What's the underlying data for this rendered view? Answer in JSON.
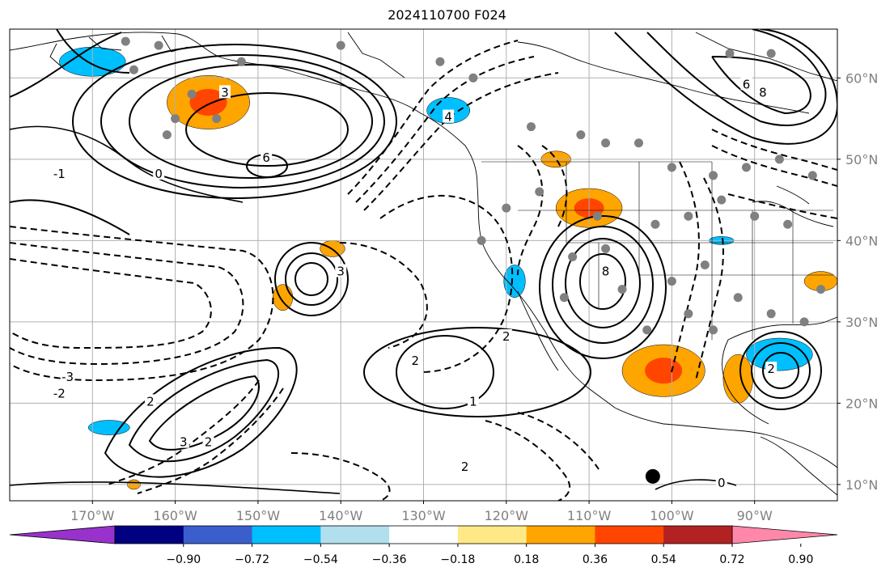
{
  "title": "2024110700 F024",
  "map": {
    "projection": "plate-carree",
    "lon_range": [
      -180,
      -80
    ],
    "lat_range": [
      8,
      66
    ],
    "lon_ticks": [
      {
        "value": -170,
        "label": "170°W"
      },
      {
        "value": -160,
        "label": "160°W"
      },
      {
        "value": -150,
        "label": "150°W"
      },
      {
        "value": -140,
        "label": "140°W"
      },
      {
        "value": -130,
        "label": "130°W"
      },
      {
        "value": -120,
        "label": "120°W"
      },
      {
        "value": -110,
        "label": "110°W"
      },
      {
        "value": -100,
        "label": "100°W"
      },
      {
        "value": -90,
        "label": "90°W"
      }
    ],
    "lat_ticks": [
      {
        "value": 60,
        "label": "60°N"
      },
      {
        "value": 50,
        "label": "50°N"
      },
      {
        "value": 40,
        "label": "40°N"
      },
      {
        "value": 30,
        "label": "30°N"
      },
      {
        "value": 20,
        "label": "20°N"
      },
      {
        "value": 10,
        "label": "10°N"
      }
    ],
    "grid": true
  },
  "colorbar": {
    "extend": "both",
    "colors": [
      "#9932cc",
      "#000080",
      "#3a5fcd",
      "#00bfff",
      "#b2dfee",
      "#ffffff",
      "#ffe987",
      "#ffa500",
      "#ff4500",
      "#b22222",
      "#ff88aa"
    ],
    "tick_labels": [
      "−0.90",
      "−0.72",
      "−0.54",
      "−0.36",
      "−0.18",
      "0.18",
      "0.36",
      "0.54",
      "0.72",
      "0.90"
    ]
  },
  "contour_labels": [
    {
      "text": "6",
      "lon": -149,
      "lat": 50
    },
    {
      "text": "3",
      "lon": -154,
      "lat": 58
    },
    {
      "text": "0",
      "lon": -162,
      "lat": 48
    },
    {
      "text": "-1",
      "lon": -174,
      "lat": 48
    },
    {
      "text": "-2",
      "lon": -174,
      "lat": 21
    },
    {
      "text": "-3",
      "lon": -173,
      "lat": 23
    },
    {
      "text": "3",
      "lon": -159,
      "lat": 15
    },
    {
      "text": "2",
      "lon": -156,
      "lat": 15
    },
    {
      "text": "2",
      "lon": -163,
      "lat": 20
    },
    {
      "text": "2",
      "lon": -131,
      "lat": 25
    },
    {
      "text": "1",
      "lon": -124,
      "lat": 20
    },
    {
      "text": "3",
      "lon": -140,
      "lat": 36
    },
    {
      "text": "8",
      "lon": -108,
      "lat": 36
    },
    {
      "text": "2",
      "lon": -120,
      "lat": 28
    },
    {
      "text": "2",
      "lon": -88,
      "lat": 24
    },
    {
      "text": "6",
      "lon": -91,
      "lat": 59
    },
    {
      "text": "8",
      "lon": -89,
      "lat": 58
    },
    {
      "text": "4",
      "lon": -127,
      "lat": 55
    },
    {
      "text": "2",
      "lon": -125,
      "lat": 12
    },
    {
      "text": "0",
      "lon": -94,
      "lat": 10
    }
  ],
  "positive_anomalies": [
    {
      "lon": -156,
      "lat": 57,
      "rx": 5,
      "ry": 3.3
    },
    {
      "lon": -110,
      "lat": 44,
      "rx": 4,
      "ry": 2.4
    },
    {
      "lon": -101,
      "lat": 24,
      "rx": 5,
      "ry": 3.2
    },
    {
      "lon": -92,
      "lat": 23,
      "rx": 1.8,
      "ry": 3
    },
    {
      "lon": -141,
      "lat": 39,
      "rx": 1.5,
      "ry": 1
    },
    {
      "lon": -114,
      "lat": 50,
      "rx": 1.8,
      "ry": 1
    },
    {
      "lon": -165,
      "lat": 10,
      "rx": 0.8,
      "ry": 0.6
    },
    {
      "lon": -147,
      "lat": 33,
      "rx": 1.2,
      "ry": 1.6
    },
    {
      "lon": -82,
      "lat": 35,
      "rx": 2,
      "ry": 1.2
    }
  ],
  "negative_anomalies": [
    {
      "lon": -170,
      "lat": 62,
      "rx": 4,
      "ry": 1.8
    },
    {
      "lon": -127,
      "lat": 56,
      "rx": 2.6,
      "ry": 1.6
    },
    {
      "lon": -119,
      "lat": 35,
      "rx": 1.3,
      "ry": 2
    },
    {
      "lon": -87,
      "lat": 26,
      "rx": 4,
      "ry": 2
    },
    {
      "lon": -168,
      "lat": 17,
      "rx": 2.5,
      "ry": 0.9
    },
    {
      "lon": -94,
      "lat": 40,
      "rx": 1.5,
      "ry": 0.5
    }
  ],
  "station_dots": [
    [
      -166,
      64.5
    ],
    [
      -162,
      64
    ],
    [
      -165,
      61
    ],
    [
      -152,
      62
    ],
    [
      -158,
      58
    ],
    [
      -155,
      55
    ],
    [
      -161,
      53
    ],
    [
      -160,
      55
    ],
    [
      -140,
      64
    ],
    [
      -128,
      62
    ],
    [
      -124,
      60
    ],
    [
      -117,
      54
    ],
    [
      -111,
      53
    ],
    [
      -108,
      52
    ],
    [
      -104,
      52
    ],
    [
      -100,
      49
    ],
    [
      -95,
      48
    ],
    [
      -91,
      49
    ],
    [
      -87,
      50
    ],
    [
      -83,
      48
    ],
    [
      -116,
      46
    ],
    [
      -109,
      43
    ],
    [
      -120,
      44
    ],
    [
      -123,
      40
    ],
    [
      -112,
      38
    ],
    [
      -106,
      34
    ],
    [
      -100,
      35
    ],
    [
      -96,
      37
    ],
    [
      -92,
      33
    ],
    [
      -88,
      31
    ],
    [
      -84,
      30
    ],
    [
      -98,
      31
    ],
    [
      -95,
      29
    ],
    [
      -82,
      34
    ],
    [
      -86,
      42
    ],
    [
      -90,
      43
    ],
    [
      -94,
      45
    ],
    [
      -98,
      43
    ],
    [
      -102,
      42
    ],
    [
      -108,
      39
    ],
    [
      -113,
      33
    ],
    [
      -103,
      29
    ],
    [
      -88,
      63
    ],
    [
      -93,
      63
    ]
  ],
  "black_dot": {
    "lon": -102.3,
    "lat": 11
  }
}
